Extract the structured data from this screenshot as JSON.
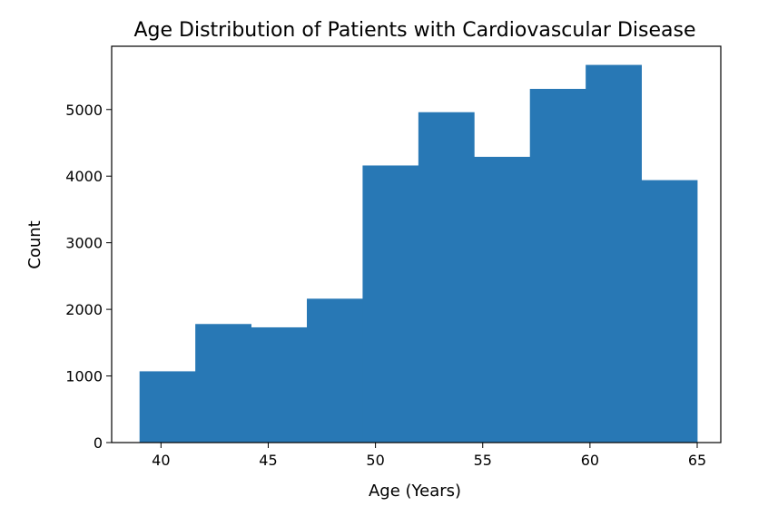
{
  "chart_data": {
    "type": "bar",
    "title": "Age Distribution of Patients with Cardiovascular Disease",
    "xlabel": "Age (Years)",
    "ylabel": "Count",
    "xlim": [
      37.7,
      66.1
    ],
    "ylim": [
      0,
      5950
    ],
    "xticks": [
      40,
      45,
      50,
      55,
      60,
      65
    ],
    "yticks": [
      0,
      1000,
      2000,
      3000,
      4000,
      5000
    ],
    "bins": [
      {
        "x0": 39.0,
        "x1": 41.6,
        "value": 1070
      },
      {
        "x0": 41.6,
        "x1": 44.2,
        "value": 1780
      },
      {
        "x0": 44.2,
        "x1": 46.8,
        "value": 1730
      },
      {
        "x0": 46.8,
        "x1": 49.4,
        "value": 2160
      },
      {
        "x0": 49.4,
        "x1": 52.0,
        "value": 4160
      },
      {
        "x0": 52.0,
        "x1": 54.6,
        "value": 4960
      },
      {
        "x0": 54.6,
        "x1": 57.2,
        "value": 4290
      },
      {
        "x0": 57.2,
        "x1": 59.8,
        "value": 5310
      },
      {
        "x0": 59.8,
        "x1": 62.4,
        "value": 5670
      },
      {
        "x0": 62.4,
        "x1": 65.0,
        "value": 3940
      }
    ],
    "bar_color": "#2878b5",
    "grid": false,
    "legend": false
  }
}
